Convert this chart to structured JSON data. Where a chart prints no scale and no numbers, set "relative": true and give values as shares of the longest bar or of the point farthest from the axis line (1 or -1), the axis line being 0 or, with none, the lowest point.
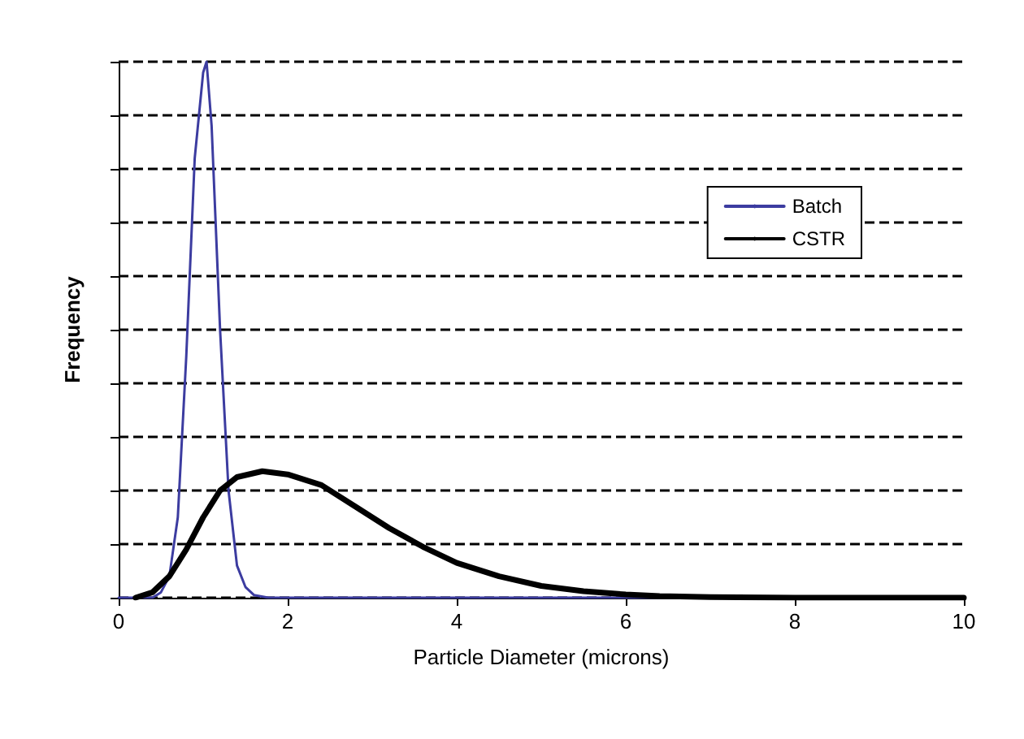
{
  "chart_data": {
    "type": "line",
    "xlabel": "Particle Diameter (microns)",
    "ylabel": "Frequency",
    "relative": true,
    "xlim": [
      0,
      10
    ],
    "xticks": [
      0,
      2,
      4,
      6,
      8,
      10
    ],
    "grid": "y",
    "legend": "top right",
    "marker": "none",
    "line_style": "solid",
    "series": [
      {
        "name": "Batch",
        "color": "#3c3ca0",
        "x": [
          0,
          0.4,
          0.5,
          0.6,
          0.7,
          0.8,
          0.9,
          1.0,
          1.04,
          1.1,
          1.2,
          1.3,
          1.4,
          1.5,
          1.6,
          1.77,
          3,
          10
        ],
        "values": [
          0,
          0,
          0.01,
          0.04,
          0.15,
          0.45,
          0.82,
          0.98,
          1,
          0.88,
          0.5,
          0.2,
          0.06,
          0.02,
          0.005,
          0,
          0,
          0
        ]
      },
      {
        "name": "CSTR",
        "color": "#000000",
        "x": [
          0.2,
          0.4,
          0.6,
          0.8,
          1.0,
          1.2,
          1.4,
          1.7,
          2.0,
          2.4,
          2.8,
          3.2,
          3.6,
          4.0,
          4.5,
          5.0,
          5.5,
          6.0,
          6.4,
          7,
          8,
          10
        ],
        "values": [
          0,
          0.01,
          0.04,
          0.09,
          0.15,
          0.2,
          0.225,
          0.236,
          0.23,
          0.21,
          0.17,
          0.13,
          0.095,
          0.065,
          0.04,
          0.022,
          0.012,
          0.006,
          0.003,
          0.001,
          0,
          0
        ]
      }
    ]
  }
}
